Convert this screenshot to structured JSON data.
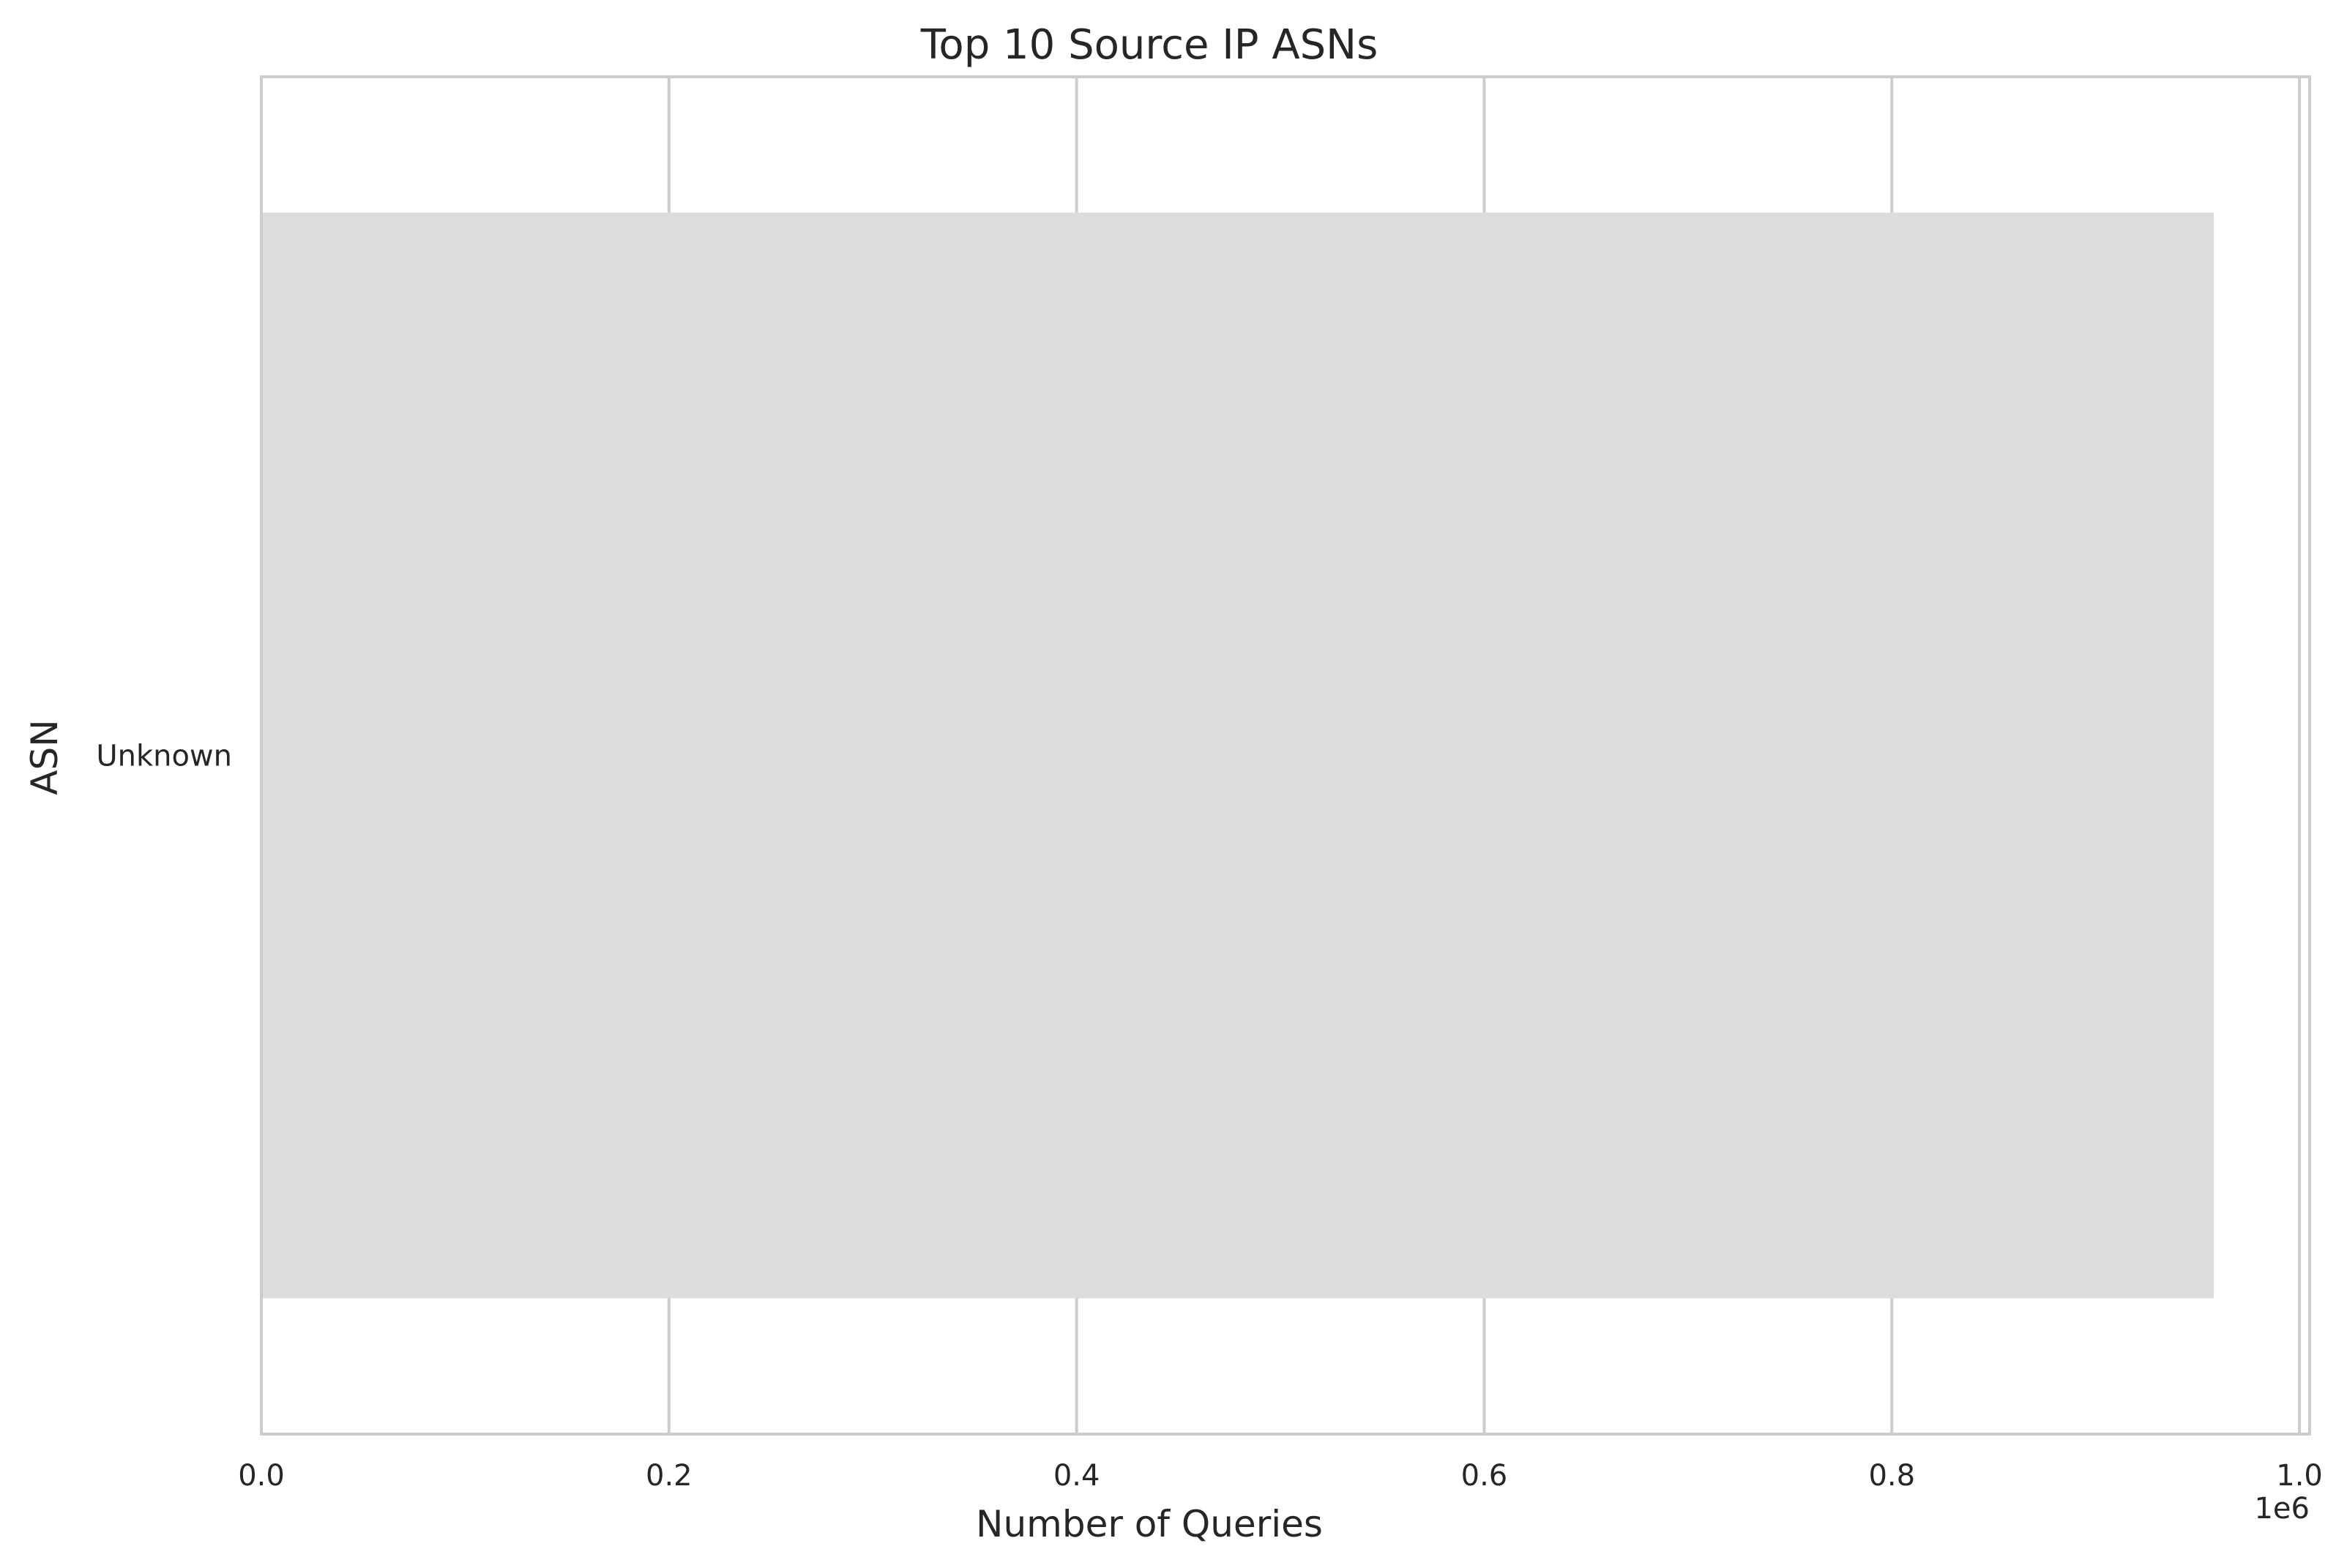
{
  "chart_data": {
    "type": "bar",
    "orientation": "horizontal",
    "title": "Top 10 Source IP ASNs",
    "xlabel": "Number of Queries",
    "ylabel": "ASN",
    "x_offset_label": "1e6",
    "categories": [
      "Unknown"
    ],
    "values": [
      958000
    ],
    "xlim": [
      0,
      1005000
    ],
    "x_ticks": [
      0,
      200000,
      400000,
      600000,
      800000,
      1000000
    ],
    "x_tick_labels": [
      "0.0",
      "0.2",
      "0.4",
      "0.6",
      "0.8",
      "1.0"
    ],
    "grid": "x",
    "bar_color": "#dcdcdc"
  }
}
